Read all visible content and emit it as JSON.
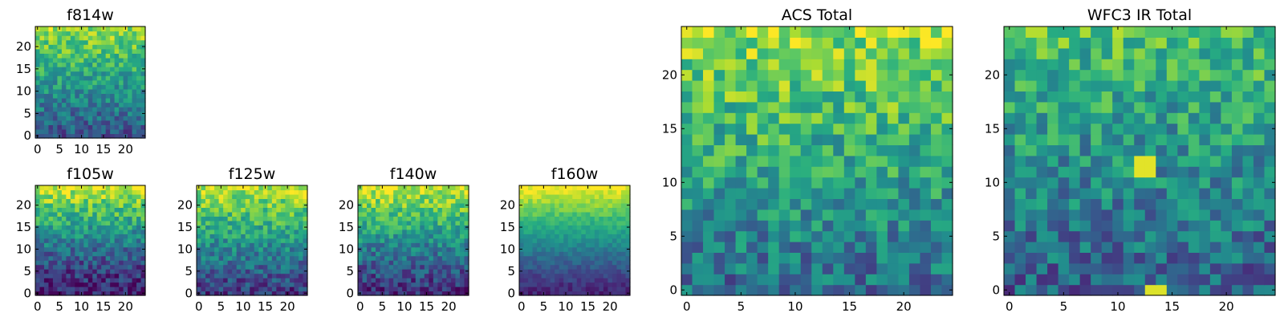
{
  "figure": {
    "width": 1600,
    "height": 400,
    "background": "#ffffff"
  },
  "colormap": {
    "name": "viridis",
    "stops": [
      "#440154",
      "#472c7a",
      "#3b518b",
      "#2c718e",
      "#21908d",
      "#27ad81",
      "#5cc863",
      "#aadc32",
      "#fde725"
    ]
  },
  "chart_data": [
    {
      "type": "heatmap",
      "title": "f814w",
      "grid_size": 25,
      "xlim": [
        -0.5,
        24.5
      ],
      "ylim": [
        -0.5,
        24.5
      ],
      "xticks": [
        0,
        5,
        10,
        15,
        20
      ],
      "yticks": [
        0,
        5,
        10,
        15,
        20
      ],
      "color_range": [
        0,
        1
      ],
      "value_rows_bottom_to_top": [],
      "noise_seed": 11
    },
    {
      "type": "heatmap",
      "title": "f105w",
      "grid_size": 25,
      "xlim": [
        -0.5,
        24.5
      ],
      "ylim": [
        -0.5,
        24.5
      ],
      "xticks": [
        0,
        5,
        10,
        15,
        20
      ],
      "yticks": [
        0,
        5,
        10,
        15,
        20
      ],
      "color_range": [
        0,
        1
      ],
      "value_rows_bottom_to_top": [],
      "noise_seed": 23
    },
    {
      "type": "heatmap",
      "title": "f125w",
      "grid_size": 25,
      "xlim": [
        -0.5,
        24.5
      ],
      "ylim": [
        -0.5,
        24.5
      ],
      "xticks": [
        0,
        5,
        10,
        15,
        20
      ],
      "yticks": [
        0,
        5,
        10,
        15,
        20
      ],
      "color_range": [
        0,
        1
      ],
      "value_rows_bottom_to_top": [],
      "noise_seed": 37
    },
    {
      "type": "heatmap",
      "title": "f140w",
      "grid_size": 25,
      "xlim": [
        -0.5,
        24.5
      ],
      "ylim": [
        -0.5,
        24.5
      ],
      "xticks": [
        0,
        5,
        10,
        15,
        20
      ],
      "yticks": [
        0,
        5,
        10,
        15,
        20
      ],
      "color_range": [
        0,
        1
      ],
      "value_rows_bottom_to_top": [],
      "noise_seed": 41
    },
    {
      "type": "heatmap",
      "title": "f160w",
      "grid_size": 25,
      "xlim": [
        -0.5,
        24.5
      ],
      "ylim": [
        -0.5,
        24.5
      ],
      "xticks": [
        0,
        5,
        10,
        15,
        20
      ],
      "yticks": [
        0,
        5,
        10,
        15,
        20
      ],
      "color_range": [
        0,
        1
      ],
      "value_rows_bottom_to_top": [],
      "noise_seed": 53
    },
    {
      "type": "heatmap",
      "title": "ACS Total",
      "grid_size": 25,
      "xlim": [
        -0.5,
        24.5
      ],
      "ylim": [
        -0.5,
        24.5
      ],
      "xticks": [
        0,
        5,
        10,
        15,
        20
      ],
      "yticks": [
        0,
        5,
        10,
        15,
        20
      ],
      "color_range": [
        0,
        1
      ],
      "value_rows_bottom_to_top": [],
      "noise_seed": 67
    },
    {
      "type": "heatmap",
      "title": "WFC3 IR Total",
      "grid_size": 25,
      "xlim": [
        -0.5,
        24.5
      ],
      "ylim": [
        -0.5,
        24.5
      ],
      "xticks": [
        0,
        5,
        10,
        15,
        20
      ],
      "yticks": [
        0,
        5,
        10,
        15,
        20
      ],
      "color_range": [
        0,
        1
      ],
      "value_rows_bottom_to_top": [],
      "noise_seed": 79
    }
  ]
}
